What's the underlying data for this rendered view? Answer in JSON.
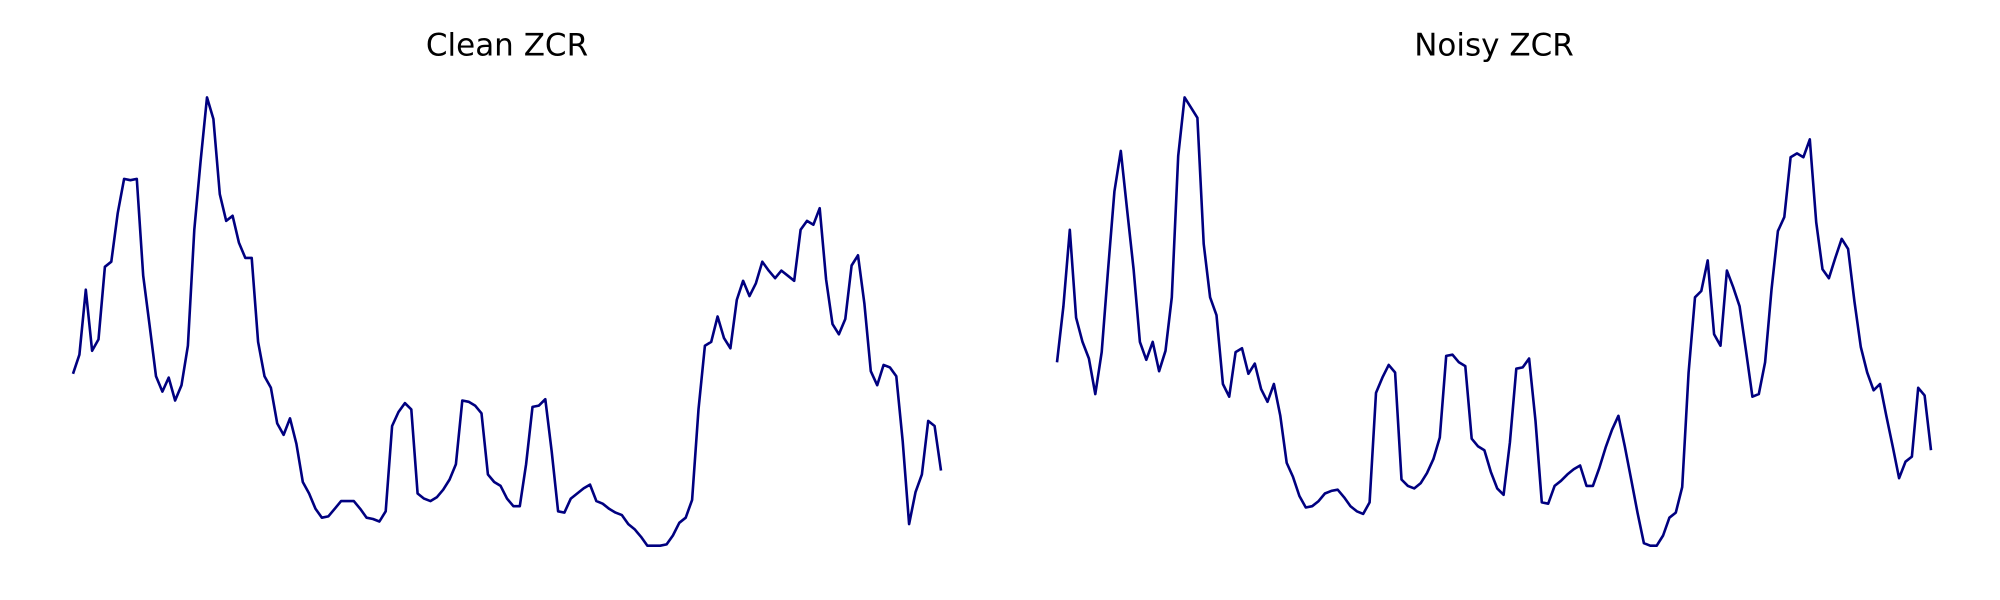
{
  "chart_data": [
    {
      "type": "line",
      "title": "Clean ZCR",
      "color": "#000080",
      "ylim": [
        0,
        380
      ],
      "values": [
        147,
        162,
        213,
        165,
        174,
        231,
        235,
        273,
        300,
        299,
        300,
        224,
        185,
        145,
        133,
        144,
        126,
        138,
        169,
        260,
        314,
        364,
        347,
        288,
        267,
        271,
        250,
        238,
        238,
        172,
        145,
        136,
        108,
        99,
        112,
        92,
        62,
        53,
        41,
        34,
        35,
        41,
        47,
        47,
        47,
        41,
        34,
        33,
        31,
        39,
        106,
        117,
        124,
        119,
        53,
        49,
        47,
        50,
        56,
        64,
        76,
        126,
        125,
        122,
        116,
        68,
        62,
        59,
        49,
        43,
        43,
        76,
        121,
        122,
        127,
        86,
        39,
        38,
        49,
        53,
        57,
        60,
        47,
        45,
        41,
        38,
        36,
        29,
        25,
        19,
        12,
        12,
        12,
        13,
        20,
        30,
        34,
        48,
        119,
        169,
        172,
        192,
        175,
        167,
        205,
        220,
        208,
        218,
        235,
        228,
        222,
        228,
        224,
        220,
        260,
        267,
        264,
        277,
        221,
        186,
        178,
        190,
        232,
        240,
        202,
        149,
        138,
        154,
        152,
        145,
        94,
        29,
        54,
        68,
        110,
        106,
        71
      ]
    },
    {
      "type": "line",
      "title": "Noisy ZCR",
      "color": "#000080",
      "ylim": [
        0,
        380
      ],
      "values": [
        156,
        200,
        260,
        191,
        172,
        159,
        131,
        164,
        228,
        290,
        322,
        275,
        229,
        172,
        158,
        172,
        149,
        165,
        207,
        318,
        364,
        356,
        348,
        249,
        207,
        193,
        139,
        129,
        164,
        167,
        147,
        155,
        135,
        125,
        139,
        114,
        77,
        66,
        51,
        42,
        43,
        47,
        53,
        55,
        56,
        50,
        43,
        39,
        37,
        46,
        132,
        144,
        154,
        148,
        64,
        59,
        57,
        61,
        69,
        80,
        97,
        161,
        162,
        156,
        153,
        96,
        90,
        87,
        70,
        57,
        52,
        93,
        151,
        152,
        159,
        110,
        46,
        45,
        59,
        63,
        68,
        72,
        75,
        59,
        59,
        73,
        89,
        103,
        114,
        90,
        64,
        38,
        14,
        12,
        12,
        20,
        34,
        38,
        58,
        148,
        207,
        212,
        236,
        178,
        169,
        228,
        215,
        200,
        165,
        129,
        131,
        156,
        213,
        259,
        270,
        317,
        320,
        317,
        331,
        266,
        229,
        222,
        238,
        253,
        245,
        204,
        168,
        148,
        134,
        139,
        114,
        90,
        65,
        78,
        82,
        136,
        130,
        87
      ]
    }
  ]
}
